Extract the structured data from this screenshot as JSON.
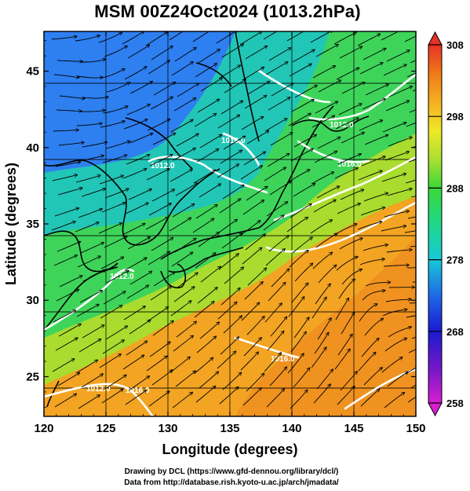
{
  "title": "MSM 00Z24Oct2024 (1013.2hPa)",
  "x_axis": {
    "label": "Longitude (degrees)",
    "ticks": [
      "120",
      "125",
      "130",
      "135",
      "140",
      "145",
      "150"
    ],
    "range": [
      120,
      150
    ]
  },
  "y_axis": {
    "label": "Latitude  (degrees)",
    "ticks": [
      "25",
      "30",
      "35",
      "40",
      "45"
    ],
    "range": [
      22.4,
      47.6
    ]
  },
  "colorbar": {
    "ticks": [
      "258",
      "268",
      "278",
      "288",
      "298",
      "308"
    ],
    "range": [
      258,
      308
    ],
    "colors": [
      "#d81fd0",
      "#7a18c8",
      "#1a1ad0",
      "#1e6ae6",
      "#18c8d8",
      "#1ed88a",
      "#3ad838",
      "#a8e030",
      "#f0e828",
      "#f5b020",
      "#f07a18",
      "#e84818",
      "#e63226"
    ]
  },
  "map_colors": {
    "cold": "#2e7ff0",
    "cool": "#22c6b6",
    "mild": "#3ed45a",
    "warm": "#a9dc2e",
    "hot": "#f2a422",
    "hotter": "#ef8a1e"
  },
  "isobar_labels": [
    "1012.0",
    "1016.0",
    "1016.0",
    "1012.0",
    "1016.0",
    "1012.0",
    "1016.0",
    "1012.0"
  ],
  "credits": {
    "drawing": "Drawing by DCL (https://www.gfd-dennou.org/library/dcl/)",
    "data": "Data from http://database.rish.kyoto-u.ac.jp/arch/jmadata/"
  }
}
